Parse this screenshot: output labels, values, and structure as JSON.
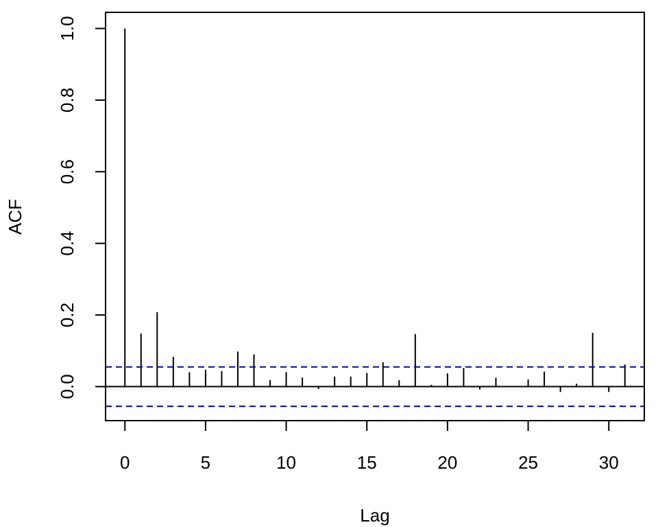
{
  "chart_data": {
    "type": "bar",
    "subtype": "acf-stem",
    "title": "",
    "xlabel": "Lag",
    "ylabel": "ACF",
    "xlim": [
      -1.2,
      32.2
    ],
    "ylim": [
      -0.095,
      1.045
    ],
    "x_ticks": [
      0,
      5,
      10,
      15,
      20,
      25,
      30
    ],
    "x_tick_labels": [
      "0",
      "5",
      "10",
      "15",
      "20",
      "25",
      "30"
    ],
    "y_ticks": [
      0.0,
      0.2,
      0.4,
      0.6,
      0.8,
      1.0
    ],
    "y_tick_labels": [
      "0.0",
      "0.2",
      "0.4",
      "0.6",
      "0.8",
      "1.0"
    ],
    "zero_line": 0,
    "confidence_bounds": [
      0.055,
      -0.055
    ],
    "confidence_color": "#0000cc",
    "stem_color": "#000000",
    "grid": false,
    "lags": [
      0,
      1,
      2,
      3,
      4,
      5,
      6,
      7,
      8,
      9,
      10,
      11,
      12,
      13,
      14,
      15,
      16,
      17,
      18,
      19,
      20,
      21,
      22,
      23,
      24,
      25,
      26,
      27,
      28,
      29,
      30,
      31
    ],
    "values": [
      1.0,
      0.148,
      0.208,
      0.083,
      0.04,
      0.047,
      0.043,
      0.098,
      0.09,
      0.018,
      0.04,
      0.025,
      -0.007,
      0.028,
      0.028,
      0.038,
      0.068,
      0.018,
      0.147,
      0.005,
      0.037,
      0.052,
      -0.008,
      0.025,
      0.002,
      0.02,
      0.042,
      -0.015,
      0.008,
      0.15,
      -0.015,
      0.062
    ]
  }
}
